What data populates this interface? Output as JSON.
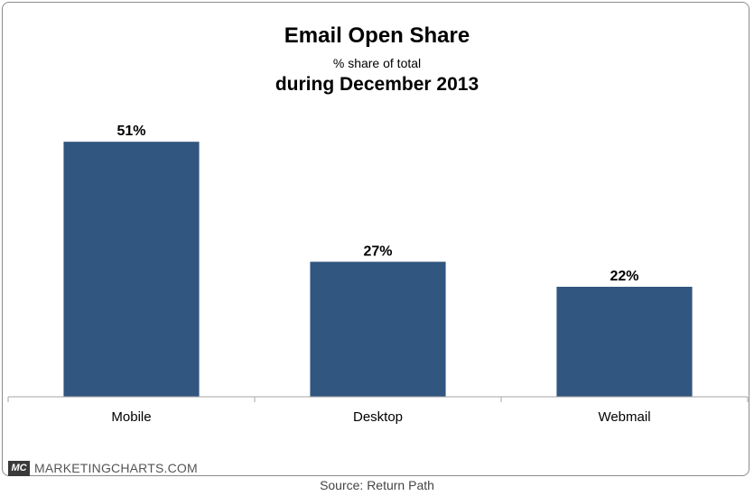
{
  "chart_data": {
    "type": "bar",
    "title": "Email Open Share",
    "subtitle": "% share of total",
    "subtitle2": "during December 2013",
    "categories": [
      "Mobile",
      "Desktop",
      "Webmail"
    ],
    "values": [
      51,
      27,
      22
    ],
    "value_labels": [
      "51%",
      "27%",
      "22%"
    ],
    "ylim": [
      0,
      55
    ],
    "xlabel": "",
    "ylabel": "",
    "grid": false,
    "legend": "none",
    "bar_color": "#31567f"
  },
  "branding": {
    "logo_text": "MC",
    "site": "MARKETINGCHARTS.COM"
  },
  "source": "Source: Return Path"
}
